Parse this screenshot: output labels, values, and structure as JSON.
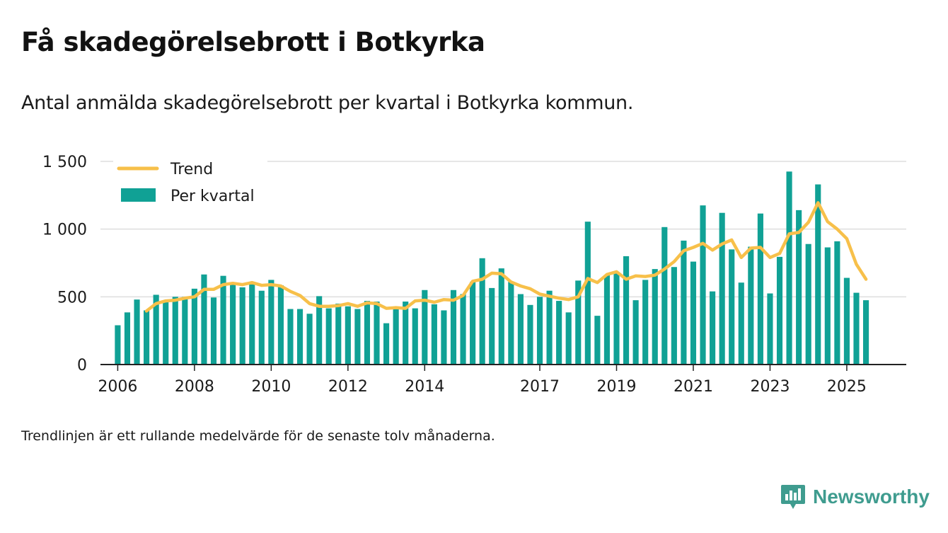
{
  "header": {
    "title": "Få skadegörelsebrott i Botkyrka",
    "subtitle": "Antal anmälda skadegörelsebrott per kvartal i Botkyrka kommun."
  },
  "footer": {
    "note": "Trendlinjen är ett rullande medelvärde för de senaste tolv månaderna.",
    "brand": "Newsworthy"
  },
  "colors": {
    "bars": "#10a195",
    "trend": "#f7c04a",
    "grid": "#dddddd",
    "axis": "#222222",
    "brand": "#3f9c8f"
  },
  "chart_data": {
    "type": "bar",
    "title": "Få skadegörelsebrott i Botkyrka",
    "xlabel": "",
    "ylabel": "",
    "ylim": [
      0,
      1500
    ],
    "yticks": [
      0,
      500,
      1000,
      1500
    ],
    "ytick_labels": [
      "0",
      "500",
      "1 000",
      "1 500"
    ],
    "xlim": [
      2005.55,
      2026.55
    ],
    "xticks": [
      2006,
      2008,
      2010,
      2012,
      2014,
      2017,
      2019,
      2021,
      2023,
      2025
    ],
    "xtick_labels": [
      "2006",
      "2008",
      "2010",
      "2012",
      "2014",
      "2017",
      "2019",
      "2021",
      "2023",
      "2025"
    ],
    "grid": true,
    "legend": {
      "position": "top-left",
      "entries": [
        "Trend",
        "Per kvartal"
      ]
    },
    "bar_start": 2006.0,
    "bar_step": 0.25,
    "series": [
      {
        "name": "Per kvartal",
        "type": "bar",
        "values": [
          290,
          385,
          480,
          400,
          515,
          475,
          500,
          500,
          560,
          665,
          495,
          655,
          590,
          570,
          600,
          545,
          625,
          585,
          410,
          410,
          375,
          505,
          415,
          450,
          430,
          410,
          470,
          465,
          305,
          420,
          465,
          415,
          550,
          445,
          400,
          550,
          520,
          610,
          785,
          565,
          710,
          610,
          520,
          440,
          500,
          545,
          470,
          385,
          620,
          1055,
          360,
          660,
          680,
          800,
          475,
          625,
          705,
          1015,
          720,
          915,
          760,
          1175,
          540,
          1120,
          850,
          605,
          870,
          1115,
          525,
          795,
          1425,
          1140,
          890,
          1330,
          865,
          910,
          640,
          530,
          475
        ]
      },
      {
        "name": "Trend",
        "type": "line",
        "x": [
          2006.75,
          2007.0,
          2007.25,
          2007.5,
          2007.75,
          2008.0,
          2008.25,
          2008.5,
          2008.75,
          2009.0,
          2009.25,
          2009.5,
          2009.75,
          2010.0,
          2010.25,
          2010.5,
          2010.75,
          2011.0,
          2011.25,
          2011.5,
          2011.75,
          2012.0,
          2012.25,
          2012.5,
          2012.75,
          2013.0,
          2013.25,
          2013.5,
          2013.75,
          2014.0,
          2014.25,
          2014.5,
          2014.75,
          2015.0,
          2015.25,
          2015.5,
          2015.75,
          2016.0,
          2016.25,
          2016.5,
          2016.75,
          2017.0,
          2017.25,
          2017.5,
          2017.75,
          2018.0,
          2018.25,
          2018.5,
          2018.75,
          2019.0,
          2019.25,
          2019.5,
          2019.75,
          2020.0,
          2020.25,
          2020.5,
          2020.75,
          2021.0,
          2021.25,
          2021.5,
          2021.75,
          2022.0,
          2022.25,
          2022.5,
          2022.75,
          2023.0,
          2023.25,
          2023.5,
          2023.75,
          2024.0,
          2024.25,
          2024.5,
          2024.75,
          2025.0,
          2025.25,
          2025.5
        ],
        "values": [
          395,
          450,
          470,
          475,
          490,
          500,
          555,
          555,
          590,
          600,
          590,
          605,
          585,
          590,
          580,
          540,
          510,
          450,
          430,
          430,
          435,
          450,
          430,
          455,
          450,
          415,
          420,
          415,
          470,
          475,
          460,
          480,
          475,
          510,
          615,
          630,
          675,
          670,
          610,
          580,
          560,
          520,
          505,
          490,
          480,
          500,
          635,
          605,
          665,
          685,
          630,
          655,
          650,
          660,
          705,
          760,
          840,
          865,
          895,
          845,
          890,
          920,
          790,
          860,
          865,
          790,
          820,
          965,
          975,
          1050,
          1195,
          1055,
          1000,
          930,
          740,
          630
        ]
      }
    ]
  }
}
